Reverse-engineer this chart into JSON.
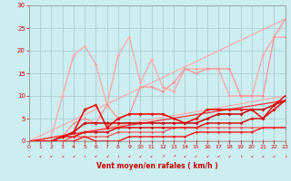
{
  "xlabel": "Vent moyen/en rafales ( km/h )",
  "xlim": [
    0,
    23
  ],
  "ylim": [
    0,
    30
  ],
  "xticks": [
    0,
    1,
    2,
    3,
    4,
    5,
    6,
    7,
    8,
    9,
    10,
    11,
    12,
    13,
    14,
    15,
    16,
    17,
    18,
    19,
    20,
    21,
    22,
    23
  ],
  "yticks": [
    0,
    5,
    10,
    15,
    20,
    25,
    30
  ],
  "background_color": "#cceef0",
  "grid_color": "#aacdd0",
  "lines": [
    {
      "comment": "lightest pink - upper diagonal line max",
      "x": [
        0,
        23
      ],
      "y": [
        0,
        27
      ],
      "color": "#ffaaaa",
      "lw": 0.9,
      "marker": null,
      "ms": 0,
      "alpha": 1.0
    },
    {
      "comment": "lightest pink - lower diagonal line",
      "x": [
        0,
        23
      ],
      "y": [
        0,
        10
      ],
      "color": "#ffaaaa",
      "lw": 0.9,
      "marker": null,
      "ms": 0,
      "alpha": 1.0
    },
    {
      "comment": "medium pink wavy - high peaks line",
      "x": [
        0,
        1,
        2,
        3,
        4,
        5,
        6,
        7,
        8,
        9,
        10,
        11,
        12,
        13,
        14,
        15,
        16,
        17,
        18,
        19,
        20,
        21,
        22,
        23
      ],
      "y": [
        0,
        0,
        1,
        10,
        19,
        21,
        17,
        8,
        19,
        23,
        13,
        18,
        12,
        11,
        16,
        16,
        16,
        16,
        10,
        10,
        10,
        19,
        23,
        23
      ],
      "color": "#ffaaaa",
      "lw": 1.0,
      "marker": "D",
      "ms": 2.0,
      "alpha": 1.0
    },
    {
      "comment": "medium pink smoother line",
      "x": [
        0,
        1,
        2,
        3,
        4,
        5,
        6,
        7,
        8,
        9,
        10,
        11,
        12,
        13,
        14,
        15,
        16,
        17,
        18,
        19,
        20,
        21,
        22,
        23
      ],
      "y": [
        0,
        0,
        0,
        1,
        4,
        5,
        4,
        8,
        5,
        6,
        12,
        12,
        11,
        13,
        16,
        15,
        16,
        16,
        16,
        10,
        10,
        10,
        23,
        27
      ],
      "color": "#ff9999",
      "lw": 1.0,
      "marker": "D",
      "ms": 2.0,
      "alpha": 1.0
    },
    {
      "comment": "dark red line - bottom cluster highest",
      "x": [
        0,
        1,
        2,
        3,
        4,
        5,
        6,
        7,
        8,
        9,
        10,
        11,
        12,
        13,
        14,
        15,
        16,
        17,
        18,
        19,
        20,
        21,
        22,
        23
      ],
      "y": [
        0,
        0,
        0,
        1,
        2,
        7,
        8,
        3,
        5,
        6,
        6,
        6,
        6,
        5,
        4,
        5,
        7,
        7,
        7,
        7,
        7,
        5,
        7,
        9
      ],
      "color": "#ee0000",
      "lw": 1.1,
      "marker": "D",
      "ms": 2.0,
      "alpha": 1.0
    },
    {
      "comment": "dark red line - bottom cluster mid",
      "x": [
        0,
        1,
        2,
        3,
        4,
        5,
        6,
        7,
        8,
        9,
        10,
        11,
        12,
        13,
        14,
        15,
        16,
        17,
        18,
        19,
        20,
        21,
        22,
        23
      ],
      "y": [
        0,
        0,
        0,
        1,
        2,
        4,
        4,
        4,
        4,
        4,
        4,
        4,
        4,
        4,
        4,
        4,
        5,
        6,
        6,
        6,
        7,
        7,
        8,
        9
      ],
      "color": "#cc0000",
      "lw": 1.1,
      "marker": "D",
      "ms": 2.0,
      "alpha": 1.0
    },
    {
      "comment": "dark red - gently rising",
      "x": [
        0,
        1,
        2,
        3,
        4,
        5,
        6,
        7,
        8,
        9,
        10,
        11,
        12,
        13,
        14,
        15,
        16,
        17,
        18,
        19,
        20,
        21,
        22,
        23
      ],
      "y": [
        0,
        0,
        0,
        1,
        1,
        2,
        2,
        2,
        3,
        3,
        3,
        3,
        3,
        3,
        3,
        3,
        4,
        4,
        4,
        4,
        5,
        5,
        8,
        10
      ],
      "color": "#dd0000",
      "lw": 1.0,
      "marker": "D",
      "ms": 1.8,
      "alpha": 1.0
    },
    {
      "comment": "dark red - nearly flat",
      "x": [
        0,
        1,
        2,
        3,
        4,
        5,
        6,
        7,
        8,
        9,
        10,
        11,
        12,
        13,
        14,
        15,
        16,
        17,
        18,
        19,
        20,
        21,
        22,
        23
      ],
      "y": [
        0,
        0,
        0,
        0,
        0,
        1,
        0,
        0,
        0,
        1,
        1,
        1,
        1,
        1,
        1,
        2,
        2,
        2,
        2,
        2,
        2,
        3,
        3,
        3
      ],
      "color": "#ff0000",
      "lw": 0.9,
      "marker": "D",
      "ms": 1.5,
      "alpha": 1.0
    },
    {
      "comment": "dark red - flat zero",
      "x": [
        0,
        1,
        2,
        3,
        4,
        5,
        6,
        7,
        8,
        9,
        10,
        11,
        12,
        13,
        14,
        15,
        16,
        17,
        18,
        19,
        20,
        21,
        22,
        23
      ],
      "y": [
        0,
        0,
        0,
        0,
        0,
        0,
        0,
        0,
        0,
        0,
        0,
        0,
        0,
        0,
        0,
        0,
        0,
        0,
        0,
        0,
        0,
        0,
        0,
        0
      ],
      "color": "#ff0000",
      "lw": 0.9,
      "marker": "D",
      "ms": 1.5,
      "alpha": 1.0
    },
    {
      "comment": "bright red diagonal upper bound",
      "x": [
        0,
        23
      ],
      "y": [
        0,
        9
      ],
      "color": "#ff0000",
      "lw": 0.9,
      "marker": null,
      "ms": 0,
      "alpha": 0.8
    },
    {
      "comment": "medium red gentle rise",
      "x": [
        0,
        1,
        2,
        3,
        4,
        5,
        6,
        7,
        8,
        9,
        10,
        11,
        12,
        13,
        14,
        15,
        16,
        17,
        18,
        19,
        20,
        21,
        22,
        23
      ],
      "y": [
        0,
        0,
        0,
        0,
        1,
        1,
        1,
        1,
        2,
        2,
        2,
        2,
        2,
        3,
        3,
        3,
        3,
        3,
        3,
        3,
        3,
        3,
        3,
        3
      ],
      "color": "#ff3333",
      "lw": 0.8,
      "marker": "D",
      "ms": 1.5,
      "alpha": 0.9
    }
  ],
  "wind_dirs": [
    "↙",
    "↙",
    "↙",
    "↙",
    "↙",
    "↓",
    "↙",
    "↙",
    "↓",
    "↙",
    "↙",
    "↙",
    "↗",
    "↗",
    "↙",
    "↙",
    "↙",
    "↙",
    "↙",
    "↓",
    "↙",
    "↙",
    "↙",
    "↓"
  ]
}
